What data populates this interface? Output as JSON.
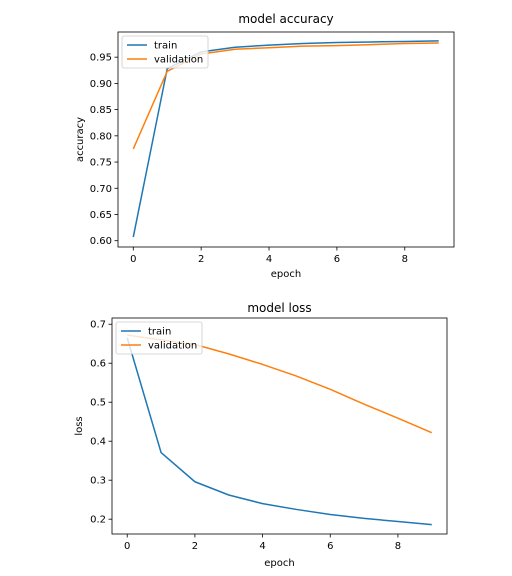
{
  "chart_data": [
    {
      "type": "line",
      "title": "model accuracy",
      "xlabel": "epoch",
      "ylabel": "accuracy",
      "x": [
        0,
        1,
        2,
        3,
        4,
        5,
        6,
        7,
        8,
        9
      ],
      "series": [
        {
          "name": "train",
          "color": "#1f77b4",
          "values": [
            0.607,
            0.928,
            0.96,
            0.969,
            0.973,
            0.976,
            0.978,
            0.979,
            0.98,
            0.981
          ]
        },
        {
          "name": "validation",
          "color": "#ff7f0e",
          "values": [
            0.775,
            0.923,
            0.956,
            0.965,
            0.968,
            0.971,
            0.972,
            0.974,
            0.976,
            0.977
          ]
        }
      ],
      "xlim": [
        -0.45,
        9.45
      ],
      "ylim": [
        0.588,
        0.998
      ],
      "xticks": [
        0,
        2,
        4,
        6,
        8
      ],
      "yticks": [
        0.6,
        0.65,
        0.7,
        0.75,
        0.8,
        0.85,
        0.9,
        0.95
      ],
      "ytick_labels": [
        "0.60",
        "0.65",
        "0.70",
        "0.75",
        "0.80",
        "0.85",
        "0.90",
        "0.95"
      ],
      "legend_position": "top-left",
      "grid": false
    },
    {
      "type": "line",
      "title": "model loss",
      "xlabel": "epoch",
      "ylabel": "loss",
      "x": [
        0,
        1,
        2,
        3,
        4,
        5,
        6,
        7,
        8,
        9
      ],
      "series": [
        {
          "name": "train",
          "color": "#1f77b4",
          "values": [
            0.665,
            0.371,
            0.296,
            0.262,
            0.24,
            0.225,
            0.212,
            0.202,
            0.194,
            0.186
          ]
        },
        {
          "name": "validation",
          "color": "#ff7f0e",
          "values": [
            0.672,
            0.66,
            0.648,
            0.624,
            0.597,
            0.567,
            0.533,
            0.495,
            0.459,
            0.422
          ]
        }
      ],
      "xlim": [
        -0.45,
        9.45
      ],
      "ylim": [
        0.162,
        0.716
      ],
      "xticks": [
        0,
        2,
        4,
        6,
        8
      ],
      "yticks": [
        0.2,
        0.3,
        0.4,
        0.5,
        0.6,
        0.7
      ],
      "ytick_labels": [
        "0.2",
        "0.3",
        "0.4",
        "0.5",
        "0.6",
        "0.7"
      ],
      "legend_position": "top-left",
      "grid": false
    }
  ]
}
